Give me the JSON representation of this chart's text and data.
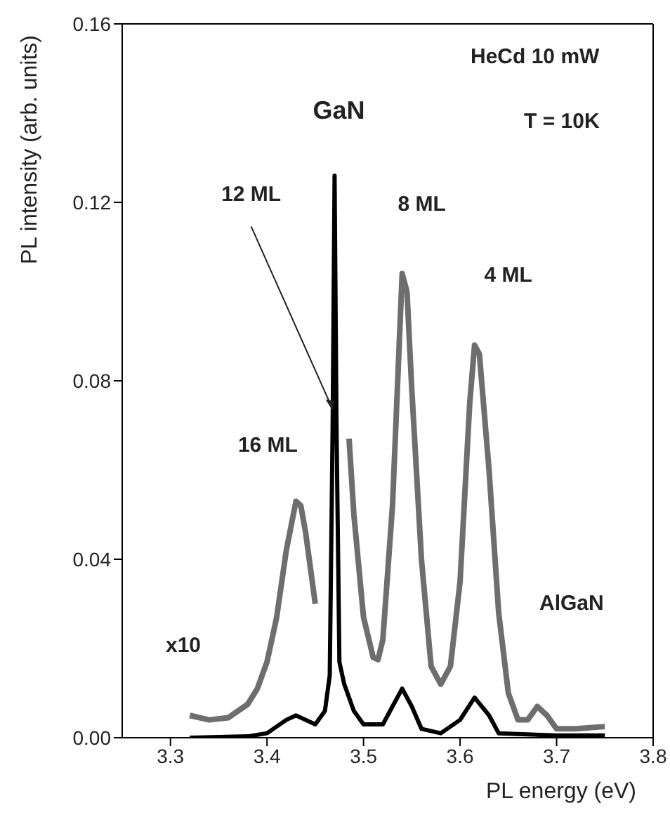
{
  "chart_data": {
    "type": "line",
    "xlabel": "PL energy (eV)",
    "ylabel": "PL intensity (arb. units)",
    "xlim": [
      3.25,
      3.8
    ],
    "xticks": [
      3.3,
      3.4,
      3.5,
      3.6,
      3.7,
      3.8
    ],
    "ylim": [
      0,
      0.16
    ],
    "yticks": [
      {
        "value": 0,
        "label": "0.00"
      },
      0.04,
      0.08,
      0.12,
      0.16
    ],
    "marker": "none",
    "line_style": "solid",
    "series": [
      {
        "color": "#6e6e6e",
        "x": [
          3.32,
          3.34,
          3.36,
          3.37,
          3.38,
          3.39,
          3.4,
          3.41,
          3.42,
          3.43,
          3.435,
          3.44,
          3.445,
          3.45,
          3.46,
          3.485,
          3.49,
          3.5,
          3.51,
          3.515,
          3.52,
          3.53,
          3.54,
          3.545,
          3.55,
          3.56,
          3.57,
          3.58,
          3.59,
          3.6,
          3.61,
          3.615,
          3.62,
          3.63,
          3.64,
          3.65,
          3.66,
          3.67,
          3.68,
          3.69,
          3.7,
          3.72,
          3.75
        ],
        "values": [
          0.005,
          0.004,
          0.0045,
          0.006,
          0.0075,
          0.011,
          0.017,
          0.027,
          0.042,
          0.053,
          0.052,
          0.046,
          0.038,
          0.03,
          null,
          0.067,
          0.05,
          0.027,
          0.018,
          0.0175,
          0.022,
          0.052,
          0.104,
          0.1,
          0.078,
          0.04,
          0.016,
          0.012,
          0.016,
          0.035,
          0.075,
          0.088,
          0.086,
          0.06,
          0.028,
          0.01,
          0.004,
          0.004,
          0.007,
          0.005,
          0.002,
          0.002,
          0.0025
        ]
      },
      {
        "color": "#000000",
        "x": [
          3.32,
          3.38,
          3.4,
          3.42,
          3.43,
          3.44,
          3.45,
          3.46,
          3.465,
          3.468,
          3.47,
          3.472,
          3.475,
          3.48,
          3.49,
          3.5,
          3.52,
          3.53,
          3.54,
          3.55,
          3.56,
          3.58,
          3.6,
          3.615,
          3.63,
          3.64,
          3.7,
          3.75
        ],
        "values": [
          0,
          0.0003,
          0.001,
          0.004,
          0.005,
          0.004,
          0.003,
          0.006,
          0.014,
          0.07,
          0.126,
          0.07,
          0.017,
          0.012,
          0.006,
          0.003,
          0.003,
          0.007,
          0.011,
          0.007,
          0.002,
          0.001,
          0.004,
          0.009,
          0.005,
          0.001,
          0.0005,
          0.0005
        ]
      }
    ],
    "annotations": [
      "HeCd 10 mW",
      "T = 10K",
      "x10",
      {
        "text": "GaN",
        "x": 3.47,
        "y": 0.126
      },
      {
        "text": "12 ML",
        "x": 3.468,
        "y": 0.073
      },
      {
        "text": "16 ML",
        "x": 3.43,
        "y": 0.053
      },
      {
        "text": "8 ML",
        "x": 3.54,
        "y": 0.104
      },
      {
        "text": "4 ML",
        "x": 3.615,
        "y": 0.088
      },
      "AlGaN"
    ]
  }
}
